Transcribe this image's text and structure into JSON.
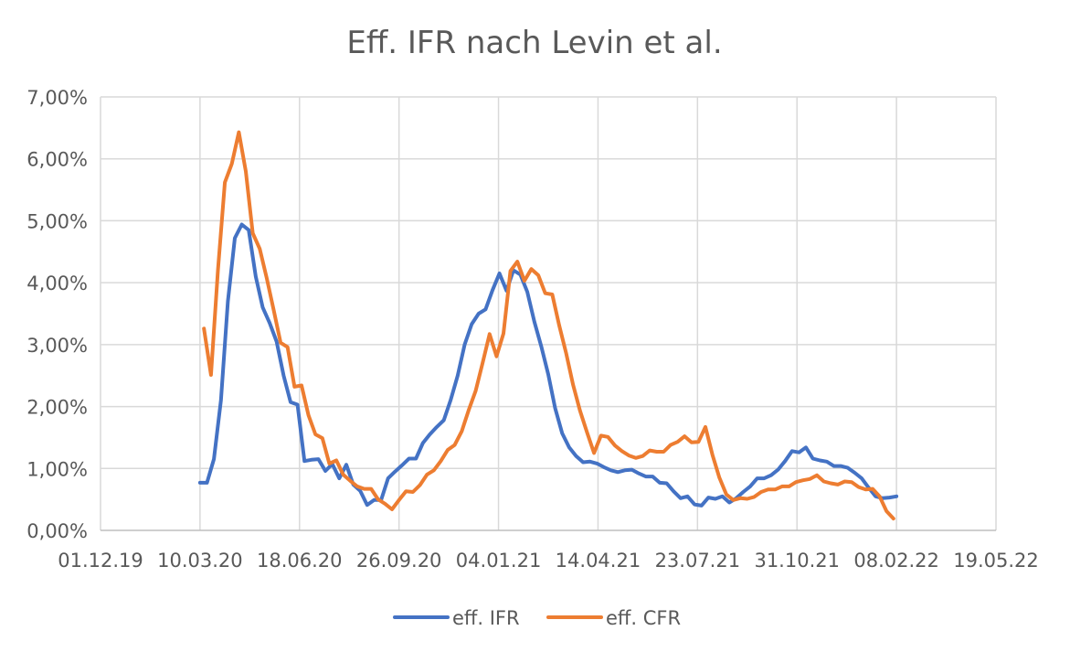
{
  "chart_data": {
    "type": "line",
    "title": "Eff. IFR nach Levin et al.",
    "xlabel": "",
    "ylabel": "",
    "x_axis": {
      "type": "date",
      "range": [
        "2019-12-01",
        "2022-05-19"
      ],
      "tick_values": [
        "2019-12-01",
        "2020-03-10",
        "2020-06-18",
        "2020-09-26",
        "2021-01-04",
        "2021-04-14",
        "2021-07-23",
        "2021-10-31",
        "2022-02-08",
        "2022-05-19"
      ],
      "tick_labels": [
        "01.12.19",
        "10.03.20",
        "18.06.20",
        "26.09.20",
        "04.01.21",
        "14.04.21",
        "23.07.21",
        "31.10.21",
        "08.02.22",
        "19.05.22"
      ]
    },
    "y_axis": {
      "range": [
        0,
        0.07
      ],
      "tick_values": [
        0,
        0.01,
        0.02,
        0.03,
        0.04,
        0.05,
        0.06,
        0.07
      ],
      "tick_labels": [
        "0,00%",
        "1,00%",
        "2,00%",
        "3,00%",
        "4,00%",
        "5,00%",
        "6,00%",
        "7,00%"
      ]
    },
    "grid": true,
    "legend_position": "bottom",
    "series": [
      {
        "name": "eff. IFR",
        "color": "#4472C4",
        "points": [
          [
            "2020-03-10",
            0.0077
          ],
          [
            "2020-03-17",
            0.0077
          ],
          [
            "2020-03-24",
            0.0115
          ],
          [
            "2020-03-31",
            0.021
          ],
          [
            "2020-04-07",
            0.037
          ],
          [
            "2020-04-14",
            0.0472
          ],
          [
            "2020-04-21",
            0.0494
          ],
          [
            "2020-04-28",
            0.0485
          ],
          [
            "2020-05-05",
            0.041
          ],
          [
            "2020-05-12",
            0.036
          ],
          [
            "2020-05-19",
            0.0335
          ],
          [
            "2020-05-26",
            0.0305
          ],
          [
            "2020-06-02",
            0.025
          ],
          [
            "2020-06-09",
            0.0207
          ],
          [
            "2020-06-16",
            0.0203
          ],
          [
            "2020-06-23",
            0.0112
          ],
          [
            "2020-06-30",
            0.0114
          ],
          [
            "2020-07-07",
            0.0115
          ],
          [
            "2020-07-14",
            0.0096
          ],
          [
            "2020-07-21",
            0.0107
          ],
          [
            "2020-07-28",
            0.0084
          ],
          [
            "2020-08-04",
            0.0106
          ],
          [
            "2020-08-11",
            0.0074
          ],
          [
            "2020-08-18",
            0.0064
          ],
          [
            "2020-08-25",
            0.0041
          ],
          [
            "2020-09-01",
            0.0049
          ],
          [
            "2020-09-08",
            0.0049
          ],
          [
            "2020-09-15",
            0.0084
          ],
          [
            "2020-09-22",
            0.0095
          ],
          [
            "2020-09-29",
            0.0105
          ],
          [
            "2020-10-06",
            0.0116
          ],
          [
            "2020-10-13",
            0.0116
          ],
          [
            "2020-10-20",
            0.0141
          ],
          [
            "2020-10-27",
            0.0155
          ],
          [
            "2020-11-03",
            0.0167
          ],
          [
            "2020-11-10",
            0.0178
          ],
          [
            "2020-11-17",
            0.0211
          ],
          [
            "2020-11-24",
            0.025
          ],
          [
            "2020-12-01",
            0.03
          ],
          [
            "2020-12-08",
            0.0333
          ],
          [
            "2020-12-15",
            0.035
          ],
          [
            "2020-12-22",
            0.0357
          ],
          [
            "2020-12-29",
            0.0388
          ],
          [
            "2021-01-05",
            0.0415
          ],
          [
            "2021-01-12",
            0.0387
          ],
          [
            "2021-01-19",
            0.042
          ],
          [
            "2021-01-26",
            0.0413
          ],
          [
            "2021-02-02",
            0.0385
          ],
          [
            "2021-02-09",
            0.0337
          ],
          [
            "2021-02-16",
            0.0297
          ],
          [
            "2021-02-23",
            0.0252
          ],
          [
            "2021-03-02",
            0.0197
          ],
          [
            "2021-03-09",
            0.0157
          ],
          [
            "2021-03-16",
            0.0134
          ],
          [
            "2021-03-23",
            0.012
          ],
          [
            "2021-03-30",
            0.011
          ],
          [
            "2021-04-06",
            0.0111
          ],
          [
            "2021-04-13",
            0.0108
          ],
          [
            "2021-04-20",
            0.0102
          ],
          [
            "2021-04-27",
            0.0097
          ],
          [
            "2021-05-04",
            0.0094
          ],
          [
            "2021-05-11",
            0.0097
          ],
          [
            "2021-05-18",
            0.0098
          ],
          [
            "2021-05-25",
            0.0092
          ],
          [
            "2021-06-01",
            0.0087
          ],
          [
            "2021-06-08",
            0.0087
          ],
          [
            "2021-06-15",
            0.0077
          ],
          [
            "2021-06-22",
            0.0076
          ],
          [
            "2021-06-29",
            0.0063
          ],
          [
            "2021-07-06",
            0.0052
          ],
          [
            "2021-07-13",
            0.0055
          ],
          [
            "2021-07-20",
            0.0042
          ],
          [
            "2021-07-27",
            0.004
          ],
          [
            "2021-08-03",
            0.0053
          ],
          [
            "2021-08-10",
            0.0051
          ],
          [
            "2021-08-17",
            0.0055
          ],
          [
            "2021-08-24",
            0.0045
          ],
          [
            "2021-08-31",
            0.0052
          ],
          [
            "2021-09-07",
            0.0062
          ],
          [
            "2021-09-14",
            0.0071
          ],
          [
            "2021-09-21",
            0.0084
          ],
          [
            "2021-09-28",
            0.0084
          ],
          [
            "2021-10-05",
            0.0089
          ],
          [
            "2021-10-12",
            0.0098
          ],
          [
            "2021-10-19",
            0.0112
          ],
          [
            "2021-10-26",
            0.0128
          ],
          [
            "2021-11-02",
            0.0126
          ],
          [
            "2021-11-09",
            0.0134
          ],
          [
            "2021-11-16",
            0.0116
          ],
          [
            "2021-11-23",
            0.0113
          ],
          [
            "2021-11-30",
            0.0111
          ],
          [
            "2021-12-07",
            0.0104
          ],
          [
            "2021-12-14",
            0.0104
          ],
          [
            "2021-12-21",
            0.0101
          ],
          [
            "2021-12-28",
            0.0093
          ],
          [
            "2022-01-04",
            0.0084
          ],
          [
            "2022-01-11",
            0.0069
          ],
          [
            "2022-01-18",
            0.0055
          ],
          [
            "2022-01-25",
            0.0052
          ],
          [
            "2022-02-01",
            0.0053
          ],
          [
            "2022-02-08",
            0.0055
          ]
        ]
      },
      {
        "name": "eff. CFR",
        "color": "#ED7D31",
        "points": [
          [
            "2020-03-14",
            0.0326
          ],
          [
            "2020-03-21",
            0.0251
          ],
          [
            "2020-03-28",
            0.042
          ],
          [
            "2020-04-04",
            0.0562
          ],
          [
            "2020-04-11",
            0.0592
          ],
          [
            "2020-04-18",
            0.0643
          ],
          [
            "2020-04-25",
            0.058
          ],
          [
            "2020-05-02",
            0.048
          ],
          [
            "2020-05-09",
            0.0455
          ],
          [
            "2020-05-16",
            0.0408
          ],
          [
            "2020-05-23",
            0.0356
          ],
          [
            "2020-05-30",
            0.0303
          ],
          [
            "2020-06-06",
            0.0296
          ],
          [
            "2020-06-13",
            0.0232
          ],
          [
            "2020-06-20",
            0.0234
          ],
          [
            "2020-06-27",
            0.0186
          ],
          [
            "2020-07-04",
            0.0155
          ],
          [
            "2020-07-11",
            0.0149
          ],
          [
            "2020-07-18",
            0.0108
          ],
          [
            "2020-07-25",
            0.0113
          ],
          [
            "2020-08-01",
            0.009
          ],
          [
            "2020-08-08",
            0.008
          ],
          [
            "2020-08-15",
            0.0071
          ],
          [
            "2020-08-22",
            0.0067
          ],
          [
            "2020-08-29",
            0.0067
          ],
          [
            "2020-09-05",
            0.005
          ],
          [
            "2020-09-12",
            0.0043
          ],
          [
            "2020-09-19",
            0.0034
          ],
          [
            "2020-09-26",
            0.0049
          ],
          [
            "2020-10-03",
            0.0063
          ],
          [
            "2020-10-10",
            0.0062
          ],
          [
            "2020-10-17",
            0.0073
          ],
          [
            "2020-10-24",
            0.009
          ],
          [
            "2020-10-31",
            0.0097
          ],
          [
            "2020-11-07",
            0.0112
          ],
          [
            "2020-11-14",
            0.013
          ],
          [
            "2020-11-21",
            0.0138
          ],
          [
            "2020-11-28",
            0.016
          ],
          [
            "2020-12-05",
            0.0194
          ],
          [
            "2020-12-12",
            0.0225
          ],
          [
            "2020-12-19",
            0.027
          ],
          [
            "2020-12-26",
            0.0317
          ],
          [
            "2021-01-02",
            0.0281
          ],
          [
            "2021-01-09",
            0.0318
          ],
          [
            "2021-01-16",
            0.0419
          ],
          [
            "2021-01-23",
            0.0434
          ],
          [
            "2021-01-30",
            0.0403
          ],
          [
            "2021-02-06",
            0.0422
          ],
          [
            "2021-02-13",
            0.0412
          ],
          [
            "2021-02-20",
            0.0383
          ],
          [
            "2021-02-27",
            0.0381
          ],
          [
            "2021-03-06",
            0.0331
          ],
          [
            "2021-03-13",
            0.0286
          ],
          [
            "2021-03-20",
            0.0235
          ],
          [
            "2021-03-27",
            0.0193
          ],
          [
            "2021-04-03",
            0.0158
          ],
          [
            "2021-04-10",
            0.0125
          ],
          [
            "2021-04-17",
            0.0153
          ],
          [
            "2021-04-24",
            0.0151
          ],
          [
            "2021-05-01",
            0.0137
          ],
          [
            "2021-05-08",
            0.0128
          ],
          [
            "2021-05-15",
            0.0121
          ],
          [
            "2021-05-22",
            0.0117
          ],
          [
            "2021-05-29",
            0.012
          ],
          [
            "2021-06-05",
            0.0129
          ],
          [
            "2021-06-12",
            0.0127
          ],
          [
            "2021-06-19",
            0.0127
          ],
          [
            "2021-06-26",
            0.0138
          ],
          [
            "2021-07-03",
            0.0143
          ],
          [
            "2021-07-10",
            0.0152
          ],
          [
            "2021-07-17",
            0.0142
          ],
          [
            "2021-07-24",
            0.0143
          ],
          [
            "2021-07-31",
            0.0167
          ],
          [
            "2021-08-07",
            0.0122
          ],
          [
            "2021-08-14",
            0.0085
          ],
          [
            "2021-08-21",
            0.0058
          ],
          [
            "2021-08-28",
            0.0049
          ],
          [
            "2021-09-04",
            0.0052
          ],
          [
            "2021-09-11",
            0.0051
          ],
          [
            "2021-09-18",
            0.0054
          ],
          [
            "2021-09-25",
            0.0062
          ],
          [
            "2021-10-02",
            0.0066
          ],
          [
            "2021-10-09",
            0.0066
          ],
          [
            "2021-10-16",
            0.0071
          ],
          [
            "2021-10-23",
            0.0071
          ],
          [
            "2021-10-30",
            0.0078
          ],
          [
            "2021-11-06",
            0.0081
          ],
          [
            "2021-11-13",
            0.0083
          ],
          [
            "2021-11-20",
            0.0089
          ],
          [
            "2021-11-27",
            0.0079
          ],
          [
            "2021-12-04",
            0.0076
          ],
          [
            "2021-12-11",
            0.0074
          ],
          [
            "2021-12-18",
            0.0079
          ],
          [
            "2021-12-25",
            0.0078
          ],
          [
            "2022-01-01",
            0.007
          ],
          [
            "2022-01-08",
            0.0066
          ],
          [
            "2022-01-15",
            0.0067
          ],
          [
            "2022-01-22",
            0.0055
          ],
          [
            "2022-01-29",
            0.0031
          ],
          [
            "2022-02-05",
            0.0019
          ]
        ]
      }
    ]
  }
}
